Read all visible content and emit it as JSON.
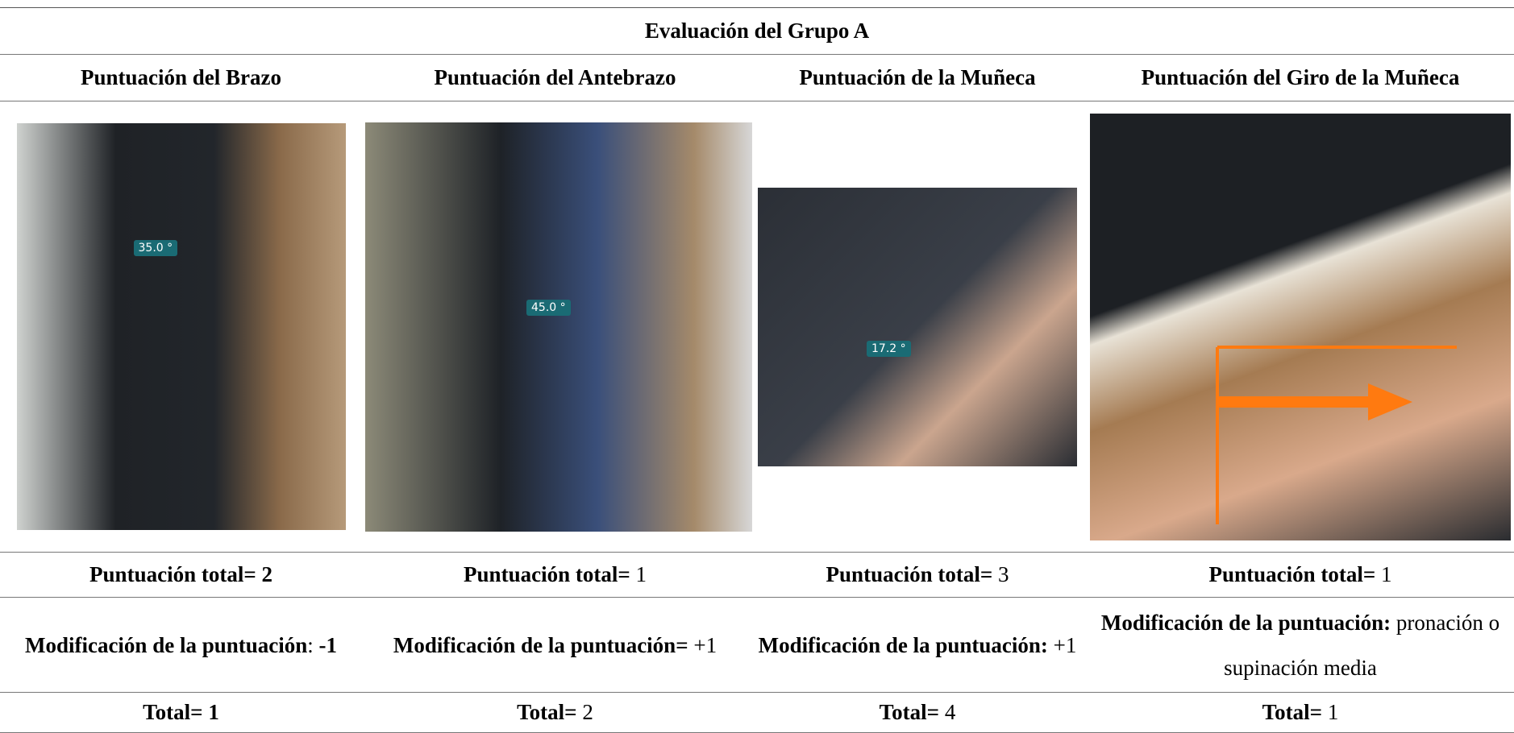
{
  "title": "Evaluación del Grupo A",
  "columns": [
    "Puntuación del Brazo",
    "Puntuación del Antebrazo",
    "Puntuación de la Muñeca",
    "Puntuación del Giro de la Muñeca"
  ],
  "images": [
    {
      "angle_label": "35.0 °"
    },
    {
      "angle_label": "45.0 °"
    },
    {
      "angle_label": "17.2 °"
    },
    {}
  ],
  "rows": [
    [
      [
        {
          "text": "Puntuación total= 2",
          "bold": true
        }
      ],
      [
        {
          "text": "Puntuación total=",
          "bold": true
        },
        {
          "text": " 1",
          "bold": false
        }
      ],
      [
        {
          "text": "Puntuación total=",
          "bold": true
        },
        {
          "text": " 3",
          "bold": false
        }
      ],
      [
        {
          "text": "Puntuación total=",
          "bold": true
        },
        {
          "text": " 1",
          "bold": false
        }
      ]
    ],
    [
      [
        {
          "text": "Modificación de la puntuación",
          "bold": true
        },
        {
          "text": ": ",
          "bold": false
        },
        {
          "text": "-1",
          "bold": true
        }
      ],
      [
        {
          "text": "Modificación de la puntuación=",
          "bold": true
        },
        {
          "text": " +1",
          "bold": false
        }
      ],
      [
        {
          "text": "Modificación de la puntuación:",
          "bold": true
        },
        {
          "text": " +1",
          "bold": false
        }
      ],
      [
        {
          "text": "Modificación de la puntuación:",
          "bold": true
        },
        {
          "text": " pronación o supinación media",
          "bold": false
        }
      ]
    ],
    [
      [
        {
          "text": "Total= 1",
          "bold": true
        }
      ],
      [
        {
          "text": "Total=",
          "bold": true
        },
        {
          "text": " 2",
          "bold": false
        }
      ],
      [
        {
          "text": "Total=",
          "bold": true
        },
        {
          "text": " 4",
          "bold": false
        }
      ],
      [
        {
          "text": "Total=",
          "bold": true
        },
        {
          "text": " 1",
          "bold": false
        }
      ]
    ]
  ]
}
